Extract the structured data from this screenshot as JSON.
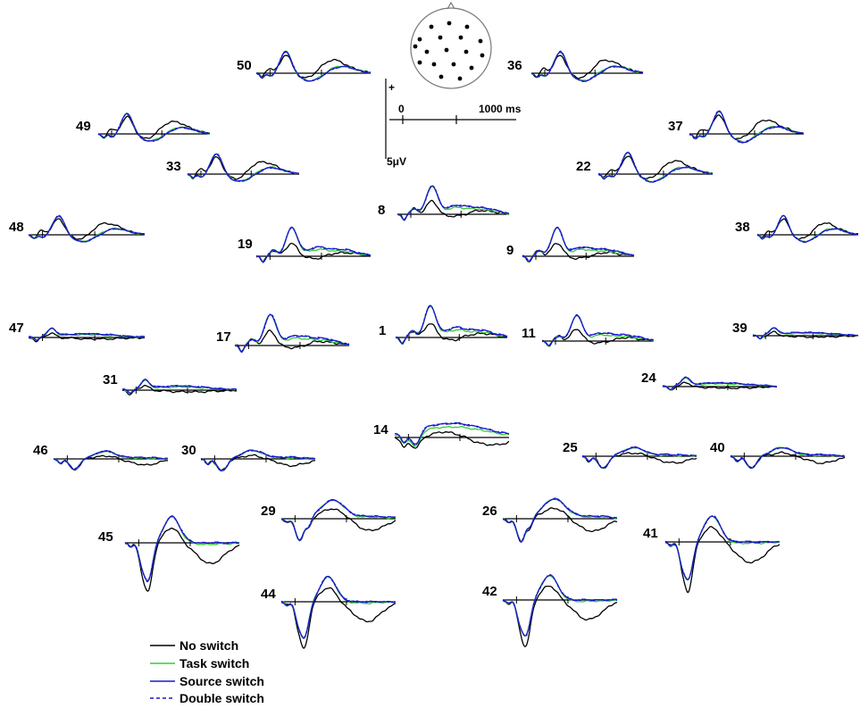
{
  "chart_data": {
    "type": "line",
    "title": "",
    "xlabel": "",
    "ylabel": "",
    "scale": {
      "plus": "+",
      "x_start": "0",
      "x_end": "1000 ms",
      "y_label": "5μV"
    },
    "series": [
      {
        "name": "No switch",
        "color": "#000000",
        "dash": ""
      },
      {
        "name": "Task switch",
        "color": "#33cc33",
        "dash": ""
      },
      {
        "name": "Source switch",
        "color": "#1a1acc",
        "dash": ""
      },
      {
        "name": "Double switch",
        "color": "#1a1acc",
        "dash": "dashed"
      }
    ],
    "electrodes": [
      {
        "label": "50",
        "profile": "early",
        "amp": 0.9
      },
      {
        "label": "36",
        "profile": "early",
        "amp": 0.9
      },
      {
        "label": "49",
        "profile": "early",
        "amp": 0.85
      },
      {
        "label": "37",
        "profile": "early",
        "amp": 0.95
      },
      {
        "label": "33",
        "profile": "early",
        "amp": 0.85
      },
      {
        "label": "22",
        "profile": "early",
        "amp": 0.9
      },
      {
        "label": "48",
        "profile": "early",
        "amp": 0.8
      },
      {
        "label": "8",
        "profile": "mid",
        "amp": 1.0
      },
      {
        "label": "19",
        "profile": "mid",
        "amp": 1.0
      },
      {
        "label": "9",
        "profile": "mid",
        "amp": 1.0
      },
      {
        "label": "38",
        "profile": "early",
        "amp": 0.8
      },
      {
        "label": "47",
        "profile": "flat",
        "amp": 0.8
      },
      {
        "label": "17",
        "profile": "mid",
        "amp": 1.1
      },
      {
        "label": "1",
        "profile": "mid",
        "amp": 1.1
      },
      {
        "label": "11",
        "profile": "mid",
        "amp": 0.9
      },
      {
        "label": "39",
        "profile": "flat",
        "amp": 0.7
      },
      {
        "label": "31",
        "profile": "flat",
        "amp": 0.9
      },
      {
        "label": "24",
        "profile": "flat",
        "amp": 0.8
      },
      {
        "label": "14",
        "profile": "plateau",
        "amp": 1.0
      },
      {
        "label": "46",
        "profile": "low",
        "amp": 0.8
      },
      {
        "label": "30",
        "profile": "low",
        "amp": 0.9
      },
      {
        "label": "25",
        "profile": "low",
        "amp": 0.9
      },
      {
        "label": "40",
        "profile": "low",
        "amp": 0.9
      },
      {
        "label": "29",
        "profile": "deep",
        "amp": 0.9
      },
      {
        "label": "26",
        "profile": "deep",
        "amp": 0.95
      },
      {
        "label": "45",
        "profile": "vdeep",
        "amp": 1.0
      },
      {
        "label": "41",
        "profile": "vdeep",
        "amp": 1.0
      },
      {
        "label": "44",
        "profile": "vdeep",
        "amp": 0.95
      },
      {
        "label": "42",
        "profile": "vdeep",
        "amp": 0.95
      }
    ]
  }
}
